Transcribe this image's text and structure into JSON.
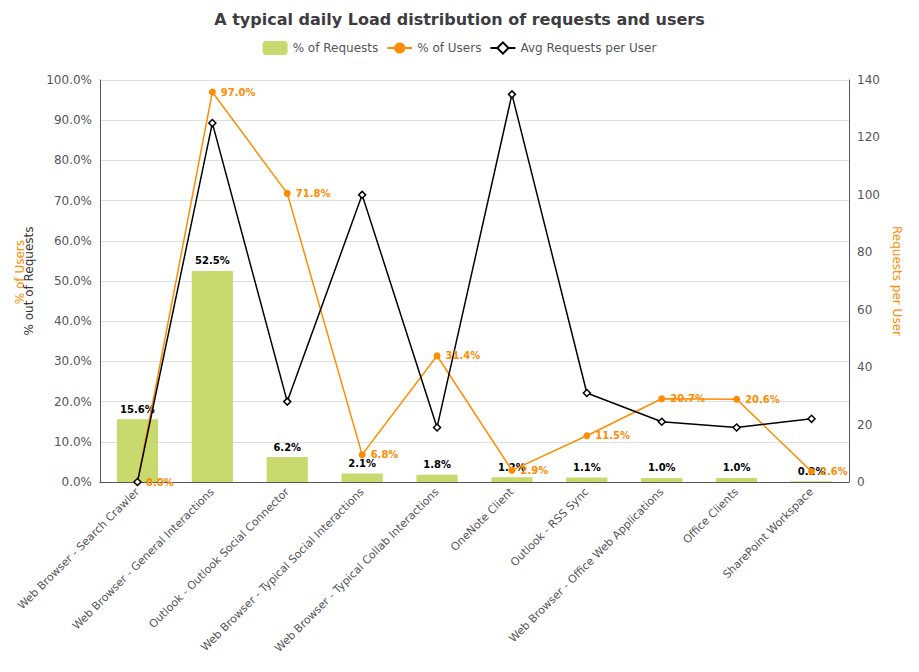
{
  "chart_data": {
    "type": "bar",
    "title": "A typical daily Load distribution of requests and users",
    "categories": [
      "Web Browser - Search Crawler",
      "Web Browser - General Interactions",
      "Outlook - Outlook Social Connector",
      "Web Browser - Typical Social Interactions",
      "Web Browser - Typical Collab Interactions",
      "OneNote Client",
      "Outlook - RSS Sync",
      "Web Browser - Office Web Applications",
      "Office Clients",
      "SharePoint Workspace"
    ],
    "series": [
      {
        "name": "% of Requests",
        "type": "bar",
        "color": "#c8d96e",
        "values": [
          15.6,
          52.5,
          6.2,
          2.1,
          1.8,
          1.2,
          1.1,
          1.0,
          1.0,
          0.2
        ],
        "value_labels": [
          "15.6%",
          "52.5%",
          "6.2%",
          "2.1%",
          "1.8%",
          "1.2%",
          "1.1%",
          "1.0%",
          "1.0%",
          "0.2%"
        ],
        "data_labels": true
      },
      {
        "name": "% of Users",
        "type": "line",
        "color": "#ff8c00",
        "marker": "circle",
        "values": [
          0.0,
          97.0,
          71.8,
          6.8,
          31.4,
          2.9,
          11.5,
          20.7,
          20.6,
          2.6
        ],
        "value_labels": [
          "0.0%",
          "97.0%",
          "71.8%",
          "6.8%",
          "31.4%",
          "2.9%",
          "11.5%",
          "20.7%",
          "20.6%",
          "2.6%"
        ],
        "data_labels": true
      },
      {
        "name": "Avg Requests per User",
        "type": "line",
        "color": "#000000",
        "marker": "diamond",
        "axis": "y2",
        "values": [
          0,
          125,
          28,
          100,
          19,
          135,
          31,
          21,
          19,
          22
        ]
      }
    ],
    "ylabel": "% out of Requests",
    "y2label": "Requests per User",
    "annotations": [
      "% of Users"
    ],
    "ylim": [
      0,
      100
    ],
    "yticks": [
      {
        "value": 0,
        "label": "0.0%"
      },
      {
        "value": 10,
        "label": "10.0%"
      },
      {
        "value": 20,
        "label": "20.0%"
      },
      {
        "value": 30,
        "label": "30.0%"
      },
      {
        "value": 40,
        "label": "40.0%"
      },
      {
        "value": 50,
        "label": "50.0%"
      },
      {
        "value": 60,
        "label": "60.0%"
      },
      {
        "value": 70,
        "label": "70.0%"
      },
      {
        "value": 80,
        "label": "80.0%"
      },
      {
        "value": 90,
        "label": "90.0%"
      },
      {
        "value": 100,
        "label": "100.0%"
      }
    ],
    "y2lim": [
      0,
      140
    ],
    "y2ticks": [
      0,
      20,
      40,
      60,
      80,
      100,
      120,
      140
    ],
    "grid": true,
    "legend": "top"
  }
}
